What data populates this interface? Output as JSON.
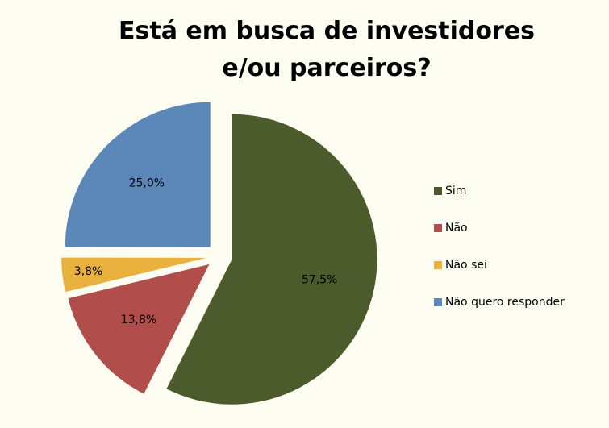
{
  "chart_data": {
    "type": "pie",
    "title": "Está em busca de investidores e/ou parceiros?",
    "categories": [
      "Sim",
      "Não",
      "Não sei",
      "Não quero responder"
    ],
    "values": [
      57.5,
      13.8,
      3.8,
      25.0
    ],
    "value_labels": [
      "57,5%",
      "13,8%",
      "3,8%",
      "25,0%"
    ],
    "colors": [
      "#4b5b2b",
      "#b14d4b",
      "#e9b13e",
      "#5b87b9"
    ],
    "legend": "right"
  }
}
